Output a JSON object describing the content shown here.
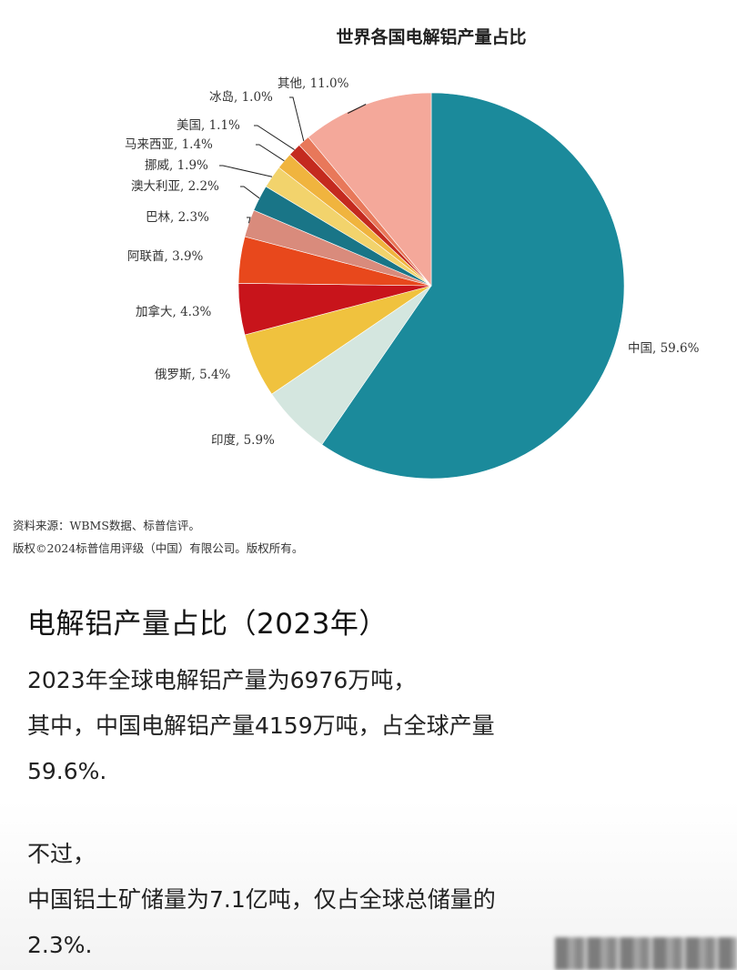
{
  "chart_data": {
    "type": "pie",
    "title": "世界各国电解铝产量占比",
    "categories": [
      "中国",
      "印度",
      "俄罗斯",
      "加拿大",
      "阿联酋",
      "巴林",
      "澳大利亚",
      "挪威",
      "马来西亚",
      "美国",
      "冰岛",
      "其他"
    ],
    "values": [
      59.6,
      5.9,
      5.4,
      4.3,
      3.9,
      2.3,
      2.2,
      1.9,
      1.4,
      1.1,
      1.0,
      11.0
    ],
    "labels": [
      "中国, 59.6%",
      "印度, 5.9%",
      "俄罗斯, 5.4%",
      "加拿大, 4.3%",
      "阿联酋, 3.9%",
      "巴林, 2.3%",
      "澳大利亚, 2.2%",
      "挪威, 1.9%",
      "马来西亚, 1.4%",
      "美国, 1.1%",
      "冰岛, 1.0%",
      "其他, 11.0%"
    ],
    "colors": [
      "#1b8a9b",
      "#d4e6df",
      "#f0c23e",
      "#c8141b",
      "#e8481c",
      "#d98b7c",
      "#197587",
      "#f2d36c",
      "#f0b43e",
      "#c42a1f",
      "#e8785a",
      "#f4a89a"
    ]
  },
  "source": {
    "line1": "资料来源：WBMS数据、标普信评。",
    "line2": "版权©2024标普信用评级（中国）有限公司。版权所有。"
  },
  "article": {
    "heading": "电解铝产量占比（2023年）",
    "para1": [
      "2023年全球电解铝产量为6976万吨，",
      "其中，中国电解铝产量4159万吨，占全球产量",
      "59.6%."
    ],
    "para2": [
      "不过，",
      "中国铝土矿储量为7.1亿吨，仅占全球总储量的",
      "2.3%."
    ]
  }
}
